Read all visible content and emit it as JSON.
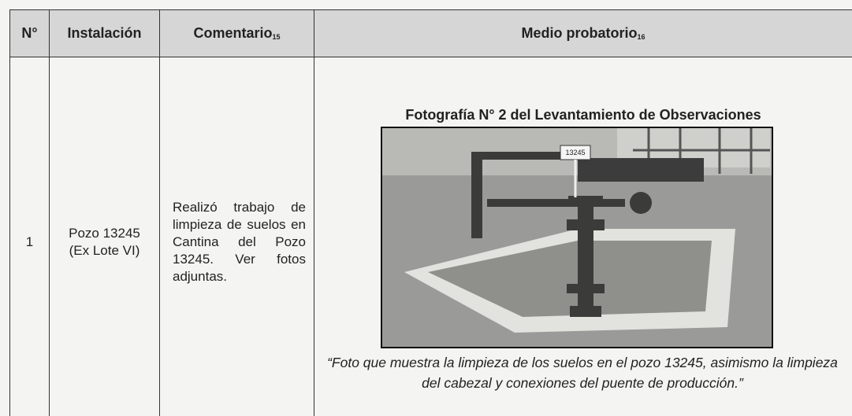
{
  "table": {
    "header": [
      {
        "text": "N°"
      },
      {
        "text": "Instalación"
      },
      {
        "text": "Comentario",
        "note": "15"
      },
      {
        "text": "Medio probatorio",
        "note": "16"
      }
    ],
    "rows": [
      {
        "number": "1",
        "installation": [
          "Pozo 13245",
          "(Ex Lote VI)"
        ],
        "comment": "Realizó trabajo de limpieza de suelos en Cantina del Pozo 13245. Ver fotos adjuntas.",
        "evidence": {
          "title": "Fotografía N° 2 del Levantamiento de Observaciones",
          "photo_sign": "13245",
          "caption": "“Foto que muestra la limpieza de los suelos en el pozo 13245, asimismo la limpieza del cabezal y conexiones del puente de producción.”"
        }
      }
    ]
  }
}
